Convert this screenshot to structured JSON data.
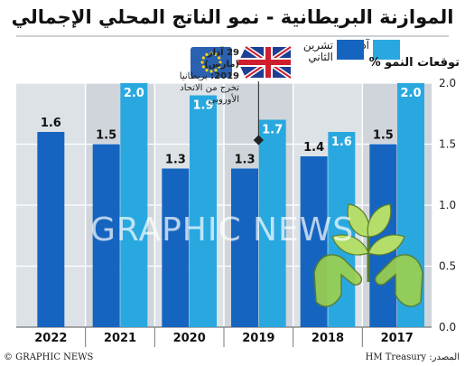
{
  "title": "الموازنة البريطانية - نمو الناتج المحلي الإجمالي",
  "legend": {
    "march_label": "آذار",
    "november_label": "تشرين الثاني"
  },
  "y_title": "توقعات النمو %",
  "annotation": {
    "date": "29 آذار (مارس) 2019:",
    "text1": "بريطانيا",
    "text2": "تخرج من الاتحاد الأوروبي"
  },
  "footer": {
    "credit": "© GRAPHIC NEWS",
    "source": "المصدر: HM Treasury"
  },
  "watermark": "GRAPHIC NEWS",
  "colors": {
    "november": "#1565c0",
    "march": "#29a8e0",
    "panel": "#dde2e7",
    "band_alt": "#cfd5db",
    "title_underline": "#9aa3ab"
  },
  "icons": [
    "eu-flag-icon",
    "uk-flag-icon",
    "plant-in-hands-icon"
  ],
  "chart_data": {
    "type": "bar",
    "categories": [
      "2022",
      "2021",
      "2020",
      "2019",
      "2018",
      "2017"
    ],
    "series": [
      {
        "name": "تشرين الثاني",
        "values": [
          1.6,
          1.5,
          1.3,
          1.3,
          1.4,
          1.5
        ]
      },
      {
        "name": "آذار",
        "values": [
          null,
          2.0,
          1.9,
          1.7,
          1.6,
          2.0
        ]
      }
    ],
    "ylim": [
      0,
      2.0
    ],
    "yticks": [
      "0.0",
      "0.5",
      "1.0",
      "1.5",
      "2.0"
    ],
    "value_labels": {
      "november": [
        "1.6",
        "1.5",
        "1.3",
        "1.3",
        "1.4",
        "1.5"
      ],
      "march": [
        "",
        "2.0",
        "1.9",
        "1.7",
        "1.6",
        "2.0"
      ]
    },
    "grid": true,
    "ylabel": "توقعات النمو %"
  }
}
